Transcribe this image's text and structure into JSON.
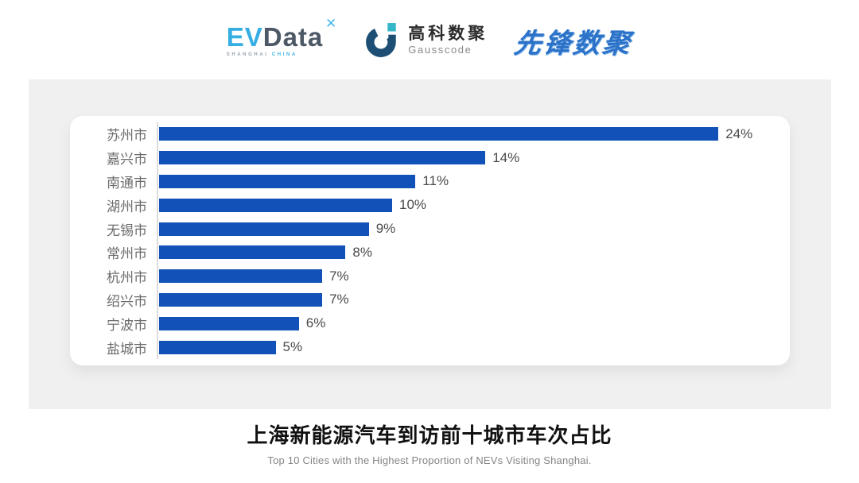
{
  "header": {
    "evdata": {
      "ev": "EV",
      "data": "Data",
      "sparkle_icon": "✕",
      "sub_left": "SHANGHAI",
      "sub_right": "CHINA",
      "ev_color": "#35aee3",
      "data_color": "#4d5866"
    },
    "gausscode": {
      "cn": "高科数聚",
      "en": "Gausscode",
      "icon_color": "#1d4e73",
      "icon_accent": "#35b6c9"
    },
    "pioneer": {
      "text": "先锋数聚",
      "color": "#2b72c8"
    }
  },
  "chart_data": {
    "type": "bar",
    "orientation": "horizontal",
    "categories": [
      "苏州市",
      "嘉兴市",
      "南通市",
      "湖州市",
      "无锡市",
      "常州市",
      "杭州市",
      "绍兴市",
      "宁波市",
      "盐城市"
    ],
    "values": [
      24,
      14,
      11,
      10,
      9,
      8,
      7,
      7,
      6,
      5
    ],
    "value_labels": [
      "24%",
      "14%",
      "11%",
      "10%",
      "9%",
      "8%",
      "7%",
      "7%",
      "6%",
      "5%"
    ],
    "unit": "%",
    "bar_color": "#1252b8",
    "axis_color": "#dcdcdc",
    "grid": false,
    "legend": false,
    "xlim": [
      0,
      26
    ],
    "title": "上海新能源汽车到访前十城市车次占比",
    "subtitle": "Top 10 Cities with the Highest Proportion of  NEVs Visiting Shanghai."
  }
}
